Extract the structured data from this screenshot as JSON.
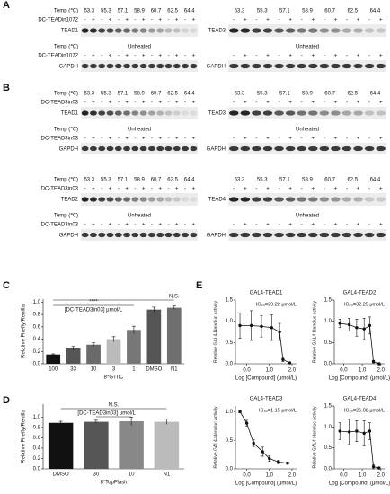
{
  "blots": {
    "temp_label": "Temp (℃)",
    "temps": [
      53.3,
      55.3,
      57.1,
      58.9,
      60.7,
      62.5,
      64.4
    ],
    "signs": [
      "-",
      "+"
    ],
    "unheated": "Unheated",
    "loading": "GAPDH"
  },
  "panel_a": {
    "label": "A",
    "compound": "DC-TEADin1072",
    "proteins": [
      "TEAD1",
      "TEAD3"
    ]
  },
  "panel_b": {
    "label": "B",
    "compound": "DC-TEAD3in03",
    "proteins": [
      "TEAD1",
      "TEAD3",
      "TEAD2",
      "TEAD4"
    ]
  },
  "panel_c": {
    "label": "C",
    "type": "bar",
    "ylabel": "Relative Firefly/Renilla",
    "xlabel": "8*GTIIC",
    "annotation": "[DC-TEAD3in03] μmol/L",
    "significance": "****",
    "ns": "N.S.",
    "categories": [
      "100",
      "33",
      "10",
      "3",
      "1",
      "DMSO",
      "N1"
    ],
    "values": [
      0.15,
      0.25,
      0.31,
      0.4,
      0.55,
      0.88,
      0.91
    ],
    "errors": [
      0.01,
      0.03,
      0.03,
      0.04,
      0.06,
      0.04,
      0.03
    ],
    "colors": [
      "#111111",
      "#555555",
      "#6a6a6a",
      "#bbbbbb",
      "#777777",
      "#555555",
      "#6f6f6f"
    ],
    "ylim": [
      0,
      1.05
    ],
    "yticks": [
      {
        "value": 0,
        "label": "0.0"
      },
      {
        "value": 0.2,
        "label": "0.2"
      },
      {
        "value": 0.4,
        "label": "0.4"
      },
      {
        "value": 0.6,
        "label": "0.6"
      },
      {
        "value": 0.8,
        "label": "0.8"
      },
      {
        "value": 1,
        "label": "1.0"
      }
    ]
  },
  "panel_d": {
    "label": "D",
    "type": "bar",
    "ylabel": "Relative Firefly/Renilla",
    "xlabel": "8*TopFlash",
    "annotation": "[DC-TEAD3in03] μmol/L",
    "ns": "N.S.",
    "categories": [
      "DMSO",
      "30",
      "10",
      "N1"
    ],
    "values": [
      0.89,
      0.91,
      0.92,
      0.91
    ],
    "errors": [
      0.03,
      0.03,
      0.08,
      0.05
    ],
    "colors": [
      "#111111",
      "#555555",
      "#888888",
      "#bbbbbb"
    ],
    "ylim": [
      0,
      1.25
    ],
    "yticks": [
      {
        "value": 0,
        "label": "0.0"
      },
      {
        "value": 0.2,
        "label": "0.2"
      },
      {
        "value": 0.4,
        "label": "0.4"
      },
      {
        "value": 0.6,
        "label": "0.6"
      },
      {
        "value": 0.8,
        "label": "0.8"
      },
      {
        "value": 1,
        "label": "1.0"
      }
    ]
  },
  "panel_e": {
    "label": "E",
    "ylabel": "Relative GAL4-Nanoluc activity",
    "xlabel": "Log [Compound] (μmol/L)",
    "xlim": [
      -0.5,
      2.2
    ],
    "xticks": [
      {
        "value": 0,
        "label": "0.0"
      },
      {
        "value": 1,
        "label": "1.0"
      },
      {
        "value": 2,
        "label": "2.0"
      }
    ],
    "plots": [
      {
        "title": "GAL4-TEAD1",
        "ic50": "IC₅₀=29.22 μmol/L",
        "ylim": [
          0,
          1.5
        ],
        "yticks": [
          {
            "value": 0,
            "label": "0.0"
          },
          {
            "value": 0.5,
            "label": "0.5"
          },
          {
            "value": 1,
            "label": "1.0"
          },
          {
            "value": 1.5,
            "label": "1.5"
          }
        ],
        "x": [
          -0.3,
          0.2,
          0.65,
          1.1,
          1.45,
          1.6,
          1.9
        ],
        "values": [
          0.9,
          0.9,
          0.88,
          0.85,
          0.75,
          0.1,
          0.02
        ],
        "errors": [
          0.3,
          0.35,
          0.25,
          0.3,
          0.2,
          0.05,
          0.02
        ]
      },
      {
        "title": "GAL4-TEAD2",
        "ic50": "IC₅₀=32.25 μmol/L",
        "ylim": [
          0,
          1.5
        ],
        "yticks": [
          {
            "value": 0,
            "label": "0.0"
          },
          {
            "value": 0.5,
            "label": "0.5"
          },
          {
            "value": 1,
            "label": "1.0"
          },
          {
            "value": 1.5,
            "label": "1.5"
          }
        ],
        "x": [
          -0.2,
          0.3,
          0.7,
          1.1,
          1.4,
          1.6,
          1.9
        ],
        "values": [
          0.95,
          0.92,
          0.85,
          0.82,
          0.9,
          0.05,
          0
        ],
        "errors": [
          0.1,
          0.15,
          0.2,
          0.25,
          0.2,
          0.03,
          0.02
        ]
      },
      {
        "title": "GAL4-TEAD3",
        "ic50": "IC₅₀=1.15 μmol/L",
        "ylim": [
          0,
          1.1
        ],
        "yticks": [
          {
            "value": 0,
            "label": "0.0"
          },
          {
            "value": 0.5,
            "label": "0.5"
          },
          {
            "value": 1,
            "label": "1.0"
          }
        ],
        "x": [
          -0.3,
          0,
          0.3,
          0.7,
          1,
          1.4,
          1.8
        ],
        "values": [
          1,
          0.8,
          0.45,
          0.3,
          0.18,
          0.12,
          0.1
        ],
        "errors": [
          0.02,
          0.05,
          0.06,
          0.08,
          0.05,
          0.03,
          0.02
        ]
      },
      {
        "title": "GAL4-TEAD4",
        "ic50": "IC₅₀=26.08 μmol/L",
        "ylim": [
          0,
          1.5
        ],
        "yticks": [
          {
            "value": 0,
            "label": "0.0"
          },
          {
            "value": 0.5,
            "label": "0.5"
          },
          {
            "value": 1,
            "label": "1.0"
          },
          {
            "value": 1.5,
            "label": "1.5"
          }
        ],
        "x": [
          -0.2,
          0.3,
          0.7,
          1.1,
          1.4,
          1.6,
          1.9
        ],
        "values": [
          0.9,
          0.88,
          0.9,
          0.85,
          0.9,
          0.05,
          0.02
        ],
        "errors": [
          0.2,
          0.3,
          0.25,
          0.3,
          0.2,
          0.05,
          0.02
        ]
      }
    ]
  }
}
